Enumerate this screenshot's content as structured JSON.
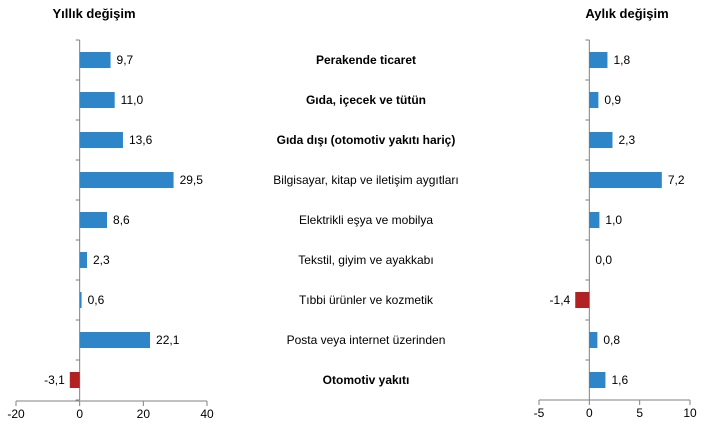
{
  "chart_data": [
    {
      "type": "bar",
      "orientation": "horizontal",
      "title": "Yıllık değişim",
      "categories": [
        "Perakende ticaret",
        "Gıda, içecek ve tütün",
        "Gıda dışı (otomotiv yakıtı hariç)",
        "Bilgisayar, kitap ve iletişim aygıtları",
        "Elektrikli eşya ve mobilya",
        "Tekstil, giyim ve ayakkabı",
        "Tıbbi ürünler ve kozmetik",
        "Posta veya internet üzerinden",
        "Otomotiv yakıtı"
      ],
      "values": [
        9.7,
        11.0,
        13.6,
        29.5,
        8.6,
        2.3,
        0.6,
        22.1,
        -3.1
      ],
      "value_labels": [
        "9,7",
        "11,0",
        "13,6",
        "29,5",
        "8,6",
        "2,3",
        "0,6",
        "22,1",
        "-3,1"
      ],
      "xlim": [
        -20,
        40
      ],
      "ticks": [
        -20,
        0,
        20,
        40
      ],
      "grid": false
    },
    {
      "type": "bar",
      "orientation": "horizontal",
      "title": "Aylık değişim",
      "categories": [
        "Perakende ticaret",
        "Gıda, içecek ve tütün",
        "Gıda dışı (otomotiv yakıtı hariç)",
        "Bilgisayar, kitap ve iletişim aygıtları",
        "Elektrikli eşya ve mobilya",
        "Tekstil, giyim ve ayakkabı",
        "Tıbbi ürünler ve kozmetik",
        "Posta veya internet üzerinden",
        "Otomotiv yakıtı"
      ],
      "values": [
        1.8,
        0.9,
        2.3,
        7.2,
        1.0,
        0.0,
        -1.4,
        0.8,
        1.6
      ],
      "value_labels": [
        "1,8",
        "0,9",
        "2,3",
        "7,2",
        "1,0",
        "0,0",
        "-1,4",
        "0,8",
        "1,6"
      ],
      "xlim": [
        -5,
        10
      ],
      "ticks": [
        -5,
        0,
        5,
        10
      ],
      "grid": false
    }
  ],
  "categories_bold": [
    true,
    true,
    true,
    false,
    false,
    false,
    false,
    false,
    true
  ],
  "colors": {
    "positive": "#2e86c9",
    "negative": "#b22222",
    "axis": "#808080"
  }
}
